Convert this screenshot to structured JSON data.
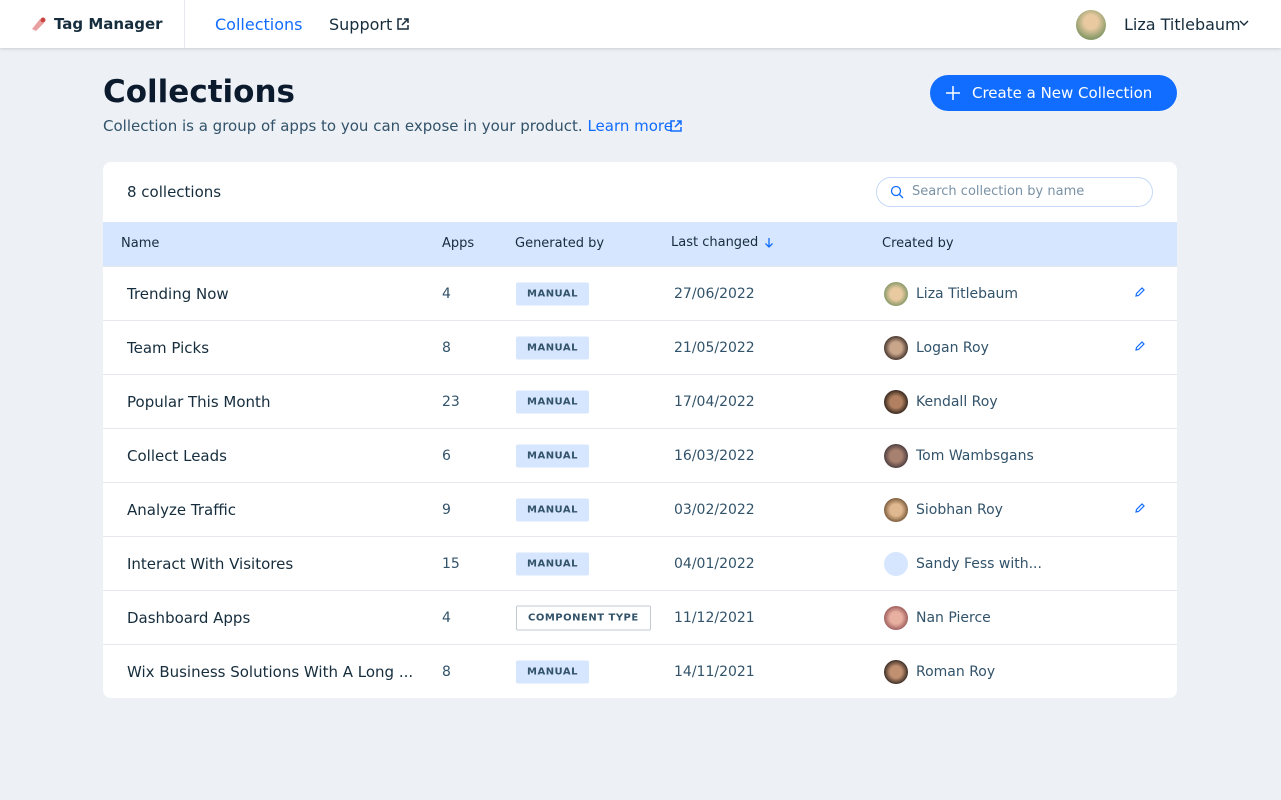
{
  "header": {
    "app_name": "Tag Manager",
    "nav": [
      "Collections",
      "Support"
    ],
    "user": "Liza Titlebaum"
  },
  "page": {
    "title": "Collections",
    "description": "Collection is a group of apps to you can expose in your product.",
    "learn_more": "Learn more",
    "create_button": "Create a New Collection"
  },
  "table": {
    "count": "8 collections",
    "search_placeholder": "Search collection by name",
    "columns": [
      "Name",
      "Apps",
      "Generated by",
      "Last changed",
      "Created by"
    ],
    "rows": [
      [
        "Trending Now",
        "4",
        "MANUAL",
        "27/06/2022",
        "Liza Titlebaum"
      ],
      [
        "Team Picks",
        "8",
        "MANUAL",
        "21/05/2022",
        "Logan Roy"
      ],
      [
        "Popular This Month",
        "23",
        "MANUAL",
        "17/04/2022",
        "Kendall Roy"
      ],
      [
        "Collect Leads",
        "6",
        "MANUAL",
        "16/03/2022",
        "Tom Wambsgans"
      ],
      [
        "Analyze Traffic",
        "9",
        "MANUAL",
        "03/02/2022",
        "Siobhan Roy"
      ],
      [
        "Interact With Visitores",
        "15",
        "MANUAL",
        "04/01/2022",
        "Sandy Fess with..."
      ],
      [
        "Dashboard Apps",
        "4",
        "COMPONENT TYPE",
        "11/12/2021",
        "Nan Pierce"
      ],
      [
        "Wix Business Solutions With A Long ...",
        "8",
        "MANUAL",
        "14/11/2021",
        "Roman Roy"
      ]
    ]
  }
}
